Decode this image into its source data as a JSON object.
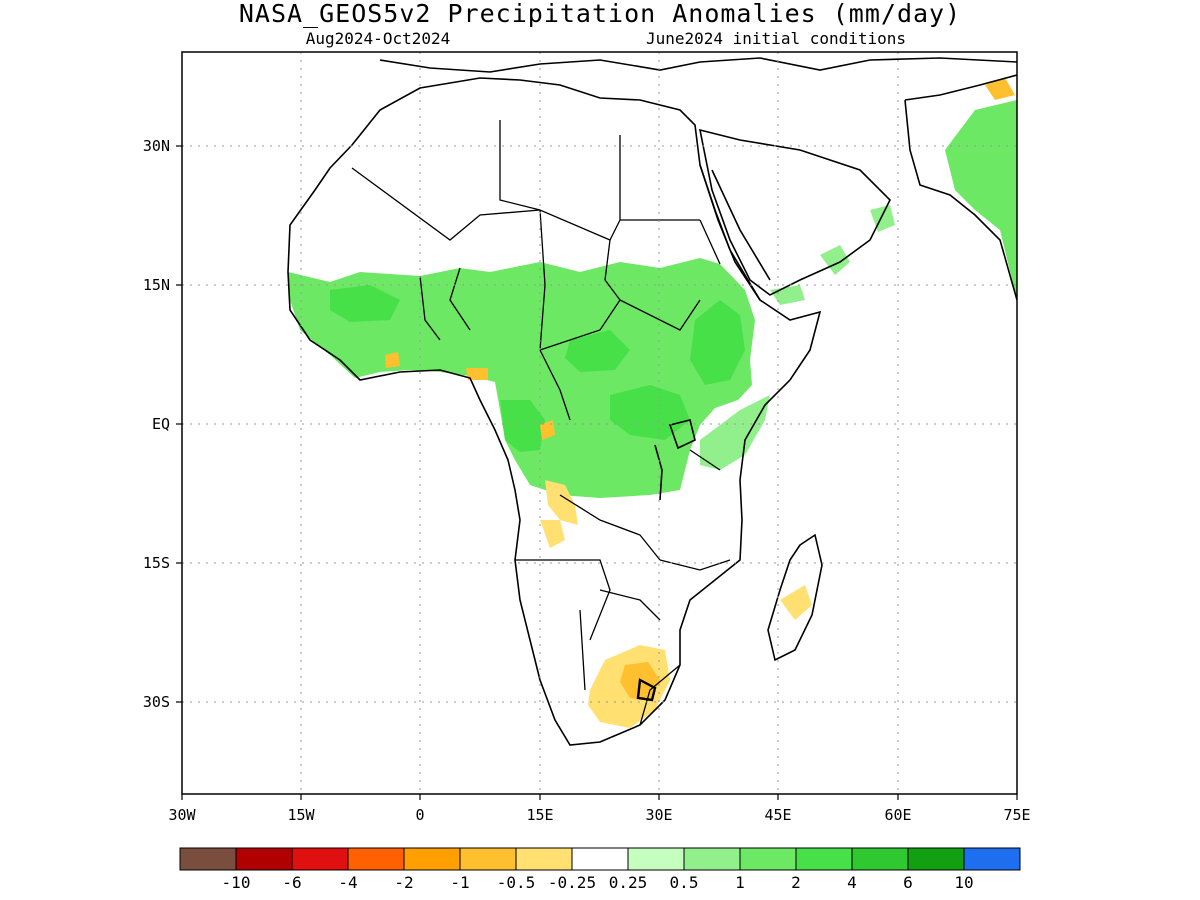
{
  "title": "NASA_GEOS5v2 Precipitation Anomalies (mm/day)",
  "subtitle_left": "Aug2024-Oct2024",
  "subtitle_right": "June2024 initial conditions",
  "axes": {
    "x_ticks": [
      "30W",
      "15W",
      "0",
      "15E",
      "30E",
      "45E",
      "60E",
      "75E"
    ],
    "y_ticks": [
      "30N",
      "15N",
      "EQ",
      "15S",
      "30S"
    ],
    "lon_range": [
      -30,
      75
    ],
    "lat_range": [
      -40,
      40
    ],
    "grid": "dotted"
  },
  "colorbar": {
    "colors": [
      "#7a4e3e",
      "#b00000",
      "#e01010",
      "#ff6000",
      "#ffa000",
      "#ffc030",
      "#ffe070",
      "#ffffff",
      "#c4ffc0",
      "#92f08c",
      "#6ce864",
      "#48e048",
      "#30c830",
      "#12a012",
      "#1e6ef0"
    ],
    "labels": [
      "-10",
      "-6",
      "-4",
      "-2",
      "-1",
      "-0.5",
      "-0.25",
      "0.25",
      "0.5",
      "1",
      "2",
      "4",
      "6",
      "10"
    ]
  },
  "regions": {
    "wet": "#6ce864",
    "wetter": "#48e048",
    "mild_wet": "#92f08c",
    "dry": "#ffe070",
    "drier": "#ffc030"
  }
}
